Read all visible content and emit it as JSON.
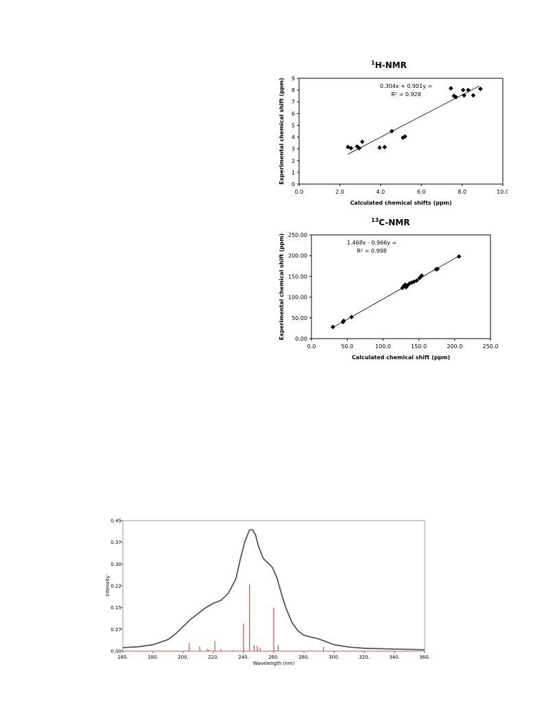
{
  "hnmr": {
    "title_sup": "1",
    "title_main": "H-NMR",
    "equation": "0.304x + 0.901y =",
    "r2": "R² = 0.928",
    "xlabel": "Calculated chemical shifts (ppm)",
    "ylabel": "Experimental chemical shift (ppm)"
  },
  "cnmr": {
    "title_sup": "13",
    "title_main": "C-NMR",
    "equation": "1.468x - 0.966y =",
    "r2": "R² = 0.998",
    "xlabel": "Calculated chemical shift (ppm)",
    "ylabel": "Experimental chemical shift (ppm)"
  },
  "uv": {
    "xlabel": "Wavelength (nm)",
    "ylabel": "Intensity"
  },
  "chart_data": [
    {
      "id": "hnmr",
      "type": "scatter",
      "title": "1H-NMR",
      "xlabel": "Calculated chemical shifts (ppm)",
      "ylabel": "Experimental chemical shift (ppm)",
      "xlim": [
        0,
        10
      ],
      "ylim": [
        0,
        9
      ],
      "xticks": [
        "0.0",
        "2.0",
        "4.0",
        "6.0",
        "8.0",
        "10.0"
      ],
      "yticks": [
        "0",
        "1",
        "2",
        "3",
        "4",
        "5",
        "6",
        "7",
        "8",
        "9"
      ],
      "grid": false,
      "points": [
        [
          2.4,
          3.15
        ],
        [
          2.55,
          3.05
        ],
        [
          2.85,
          3.2
        ],
        [
          2.95,
          3.05
        ],
        [
          3.1,
          3.6
        ],
        [
          3.95,
          3.1
        ],
        [
          4.2,
          3.15
        ],
        [
          4.55,
          4.5
        ],
        [
          5.1,
          3.95
        ],
        [
          5.2,
          4.05
        ],
        [
          7.45,
          8.15
        ],
        [
          7.6,
          7.5
        ],
        [
          7.7,
          7.4
        ],
        [
          8.05,
          8.0
        ],
        [
          8.1,
          7.55
        ],
        [
          8.3,
          8.0
        ],
        [
          8.55,
          7.55
        ],
        [
          8.9,
          8.1
        ]
      ],
      "trendline": [
        [
          2.4,
          2.55
        ],
        [
          8.85,
          8.35
        ]
      ]
    },
    {
      "id": "cnmr",
      "type": "scatter",
      "title": "13C-NMR",
      "xlabel": "Calculated chemical shift (ppm)",
      "ylabel": "Experimental chemical shift (ppm)",
      "xlim": [
        0,
        250
      ],
      "ylim": [
        0,
        250
      ],
      "xticks": [
        "0.0",
        "50.0",
        "100.0",
        "150.0",
        "200.0",
        "250.0"
      ],
      "yticks": [
        "0.00",
        "50.00",
        "100.00",
        "150.00",
        "200.00",
        "250.00"
      ],
      "grid": false,
      "points": [
        [
          30,
          28
        ],
        [
          44,
          40
        ],
        [
          45,
          43
        ],
        [
          56,
          52
        ],
        [
          127,
          122
        ],
        [
          129,
          127
        ],
        [
          131,
          130
        ],
        [
          132,
          124
        ],
        [
          134,
          128
        ],
        [
          137,
          133
        ],
        [
          140,
          135
        ],
        [
          143,
          137
        ],
        [
          147,
          140
        ],
        [
          151,
          146
        ],
        [
          153,
          150
        ],
        [
          154,
          152
        ],
        [
          174,
          167
        ],
        [
          176,
          168
        ],
        [
          206,
          198
        ]
      ],
      "trendline": [
        [
          30,
          27
        ],
        [
          206,
          199
        ]
      ]
    },
    {
      "id": "uv",
      "type": "line",
      "xlabel": "Wavelength (nm)",
      "ylabel": "Intensity",
      "xlim": [
        160,
        360
      ],
      "ylim": [
        0,
        0.45
      ],
      "xticks": [
        "160.",
        "180.",
        "200.",
        "220.",
        "240.",
        "260.",
        "280.",
        "300.",
        "320.",
        "340.",
        "360."
      ],
      "yticks": [
        "0.00",
        "0.07",
        "0.15",
        "0.22",
        "0.30",
        "0.37",
        "0.45"
      ],
      "grid": false,
      "colors": {
        "spectrum": "#555555",
        "sticks": "#c0504d"
      },
      "spectrum": [
        [
          160,
          0.012
        ],
        [
          170,
          0.015
        ],
        [
          180,
          0.022
        ],
        [
          190,
          0.04
        ],
        [
          195,
          0.06
        ],
        [
          200,
          0.085
        ],
        [
          205,
          0.11
        ],
        [
          210,
          0.13
        ],
        [
          215,
          0.15
        ],
        [
          220,
          0.165
        ],
        [
          225,
          0.175
        ],
        [
          230,
          0.2
        ],
        [
          235,
          0.25
        ],
        [
          238,
          0.32
        ],
        [
          241,
          0.38
        ],
        [
          244,
          0.418
        ],
        [
          246,
          0.418
        ],
        [
          248,
          0.4
        ],
        [
          250,
          0.36
        ],
        [
          253,
          0.32
        ],
        [
          256,
          0.305
        ],
        [
          259,
          0.29
        ],
        [
          262,
          0.255
        ],
        [
          265,
          0.2
        ],
        [
          268,
          0.15
        ],
        [
          272,
          0.1
        ],
        [
          276,
          0.07
        ],
        [
          280,
          0.055
        ],
        [
          285,
          0.048
        ],
        [
          290,
          0.042
        ],
        [
          295,
          0.032
        ],
        [
          300,
          0.022
        ],
        [
          310,
          0.014
        ],
        [
          320,
          0.01
        ],
        [
          340,
          0.007
        ],
        [
          360,
          0.005
        ]
      ],
      "sticks": [
        [
          204,
          0.028
        ],
        [
          211,
          0.016
        ],
        [
          216,
          0.008
        ],
        [
          217,
          0.006
        ],
        [
          221,
          0.034
        ],
        [
          225,
          0.007
        ],
        [
          233,
          0.003
        ],
        [
          236,
          0.002
        ],
        [
          240,
          0.095
        ],
        [
          244,
          0.23
        ],
        [
          247,
          0.02
        ],
        [
          249,
          0.018
        ],
        [
          251,
          0.012
        ],
        [
          260,
          0.15
        ],
        [
          263,
          0.02
        ],
        [
          293,
          0.015
        ]
      ]
    }
  ]
}
